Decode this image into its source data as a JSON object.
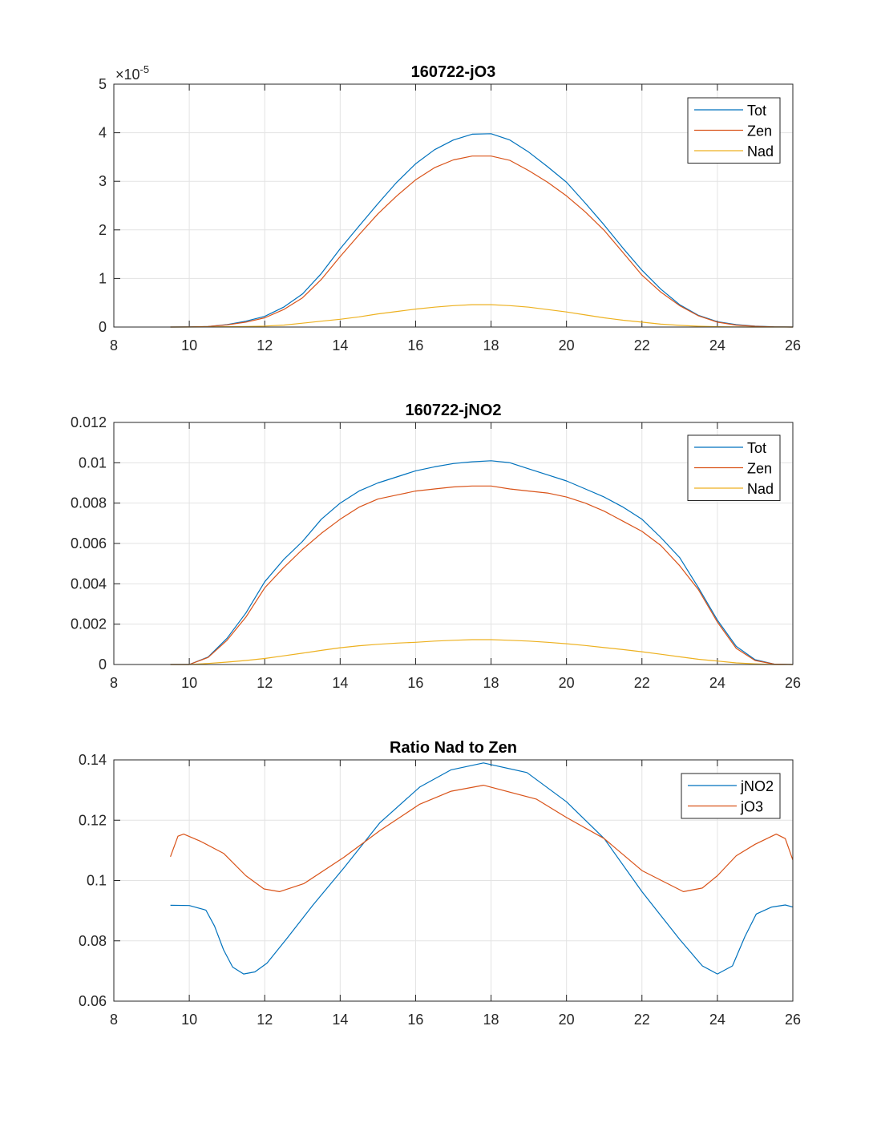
{
  "chart_data": [
    {
      "type": "line",
      "title": "160722-jO3",
      "xlabel": "",
      "ylabel": "",
      "xlim": [
        8,
        26
      ],
      "ylim": [
        0,
        5
      ],
      "xticks": [
        "8",
        "10",
        "12",
        "14",
        "16",
        "18",
        "20",
        "22",
        "24",
        "26"
      ],
      "yticks": [
        "0",
        "1",
        "2",
        "3",
        "4",
        "5"
      ],
      "y_exponent_label": "×10",
      "y_exponent": "-5",
      "grid": true,
      "legend": "top-right",
      "x": [
        9.5,
        10,
        10.5,
        11,
        11.5,
        12,
        12.5,
        13,
        13.5,
        14,
        14.5,
        15,
        15.5,
        16,
        16.5,
        17,
        17.5,
        18,
        18.5,
        19,
        19.5,
        20,
        20.5,
        21,
        21.5,
        22,
        22.5,
        23,
        23.5,
        24,
        24.5,
        25,
        25.5,
        26
      ],
      "series": [
        {
          "name": "Tot",
          "color": "#0072BD",
          "values": [
            0,
            0.001,
            0.01,
            0.05,
            0.12,
            0.22,
            0.41,
            0.68,
            1.1,
            1.61,
            2.08,
            2.54,
            2.98,
            3.36,
            3.65,
            3.85,
            3.97,
            3.98,
            3.85,
            3.6,
            3.3,
            2.98,
            2.55,
            2.1,
            1.62,
            1.17,
            0.78,
            0.46,
            0.24,
            0.11,
            0.05,
            0.02,
            0.005,
            0
          ]
        },
        {
          "name": "Zen",
          "color": "#D95319",
          "values": [
            0,
            0.001,
            0.01,
            0.045,
            0.1,
            0.19,
            0.36,
            0.6,
            0.98,
            1.45,
            1.9,
            2.33,
            2.7,
            3.03,
            3.28,
            3.44,
            3.52,
            3.52,
            3.43,
            3.22,
            2.98,
            2.7,
            2.37,
            1.99,
            1.53,
            1.07,
            0.72,
            0.44,
            0.23,
            0.1,
            0.04,
            0.015,
            0.004,
            0
          ]
        },
        {
          "name": "Nad",
          "color": "#EDB120",
          "values": [
            0,
            0,
            0.003,
            0.007,
            0.012,
            0.02,
            0.04,
            0.08,
            0.12,
            0.16,
            0.21,
            0.27,
            0.32,
            0.37,
            0.41,
            0.44,
            0.46,
            0.46,
            0.44,
            0.41,
            0.36,
            0.31,
            0.25,
            0.19,
            0.14,
            0.1,
            0.06,
            0.035,
            0.017,
            0.007,
            0.002,
            0,
            0,
            0
          ]
        }
      ]
    },
    {
      "type": "line",
      "title": "160722-jNO2",
      "xlabel": "",
      "ylabel": "",
      "xlim": [
        8,
        26
      ],
      "ylim": [
        0,
        0.012
      ],
      "xticks": [
        "8",
        "10",
        "12",
        "14",
        "16",
        "18",
        "20",
        "22",
        "24",
        "26"
      ],
      "yticks": [
        "0",
        "0.002",
        "0.004",
        "0.006",
        "0.008",
        "0.01",
        "0.012"
      ],
      "grid": true,
      "legend": "top-right",
      "x": [
        9.5,
        10,
        10.5,
        11,
        11.5,
        12,
        12.5,
        13,
        13.5,
        14,
        14.5,
        15,
        15.5,
        16,
        16.5,
        17,
        17.5,
        18,
        18.5,
        19,
        19.5,
        20,
        20.5,
        21,
        21.5,
        22,
        22.5,
        23,
        23.5,
        24,
        24.5,
        25,
        25.5,
        26
      ],
      "series": [
        {
          "name": "Tot",
          "color": "#0072BD",
          "values": [
            0,
            0,
            0.00037,
            0.0013,
            0.00255,
            0.0041,
            0.0052,
            0.0061,
            0.0072,
            0.008,
            0.0086,
            0.009,
            0.0093,
            0.0096,
            0.0098,
            0.00996,
            0.01005,
            0.0101,
            0.01,
            0.0097,
            0.0094,
            0.0091,
            0.0087,
            0.0083,
            0.0078,
            0.0072,
            0.0063,
            0.0053,
            0.0038,
            0.0022,
            0.0009,
            0.00024,
            2e-05,
            0
          ]
        },
        {
          "name": "Zen",
          "color": "#D95319",
          "values": [
            0,
            0,
            0.00035,
            0.0012,
            0.00235,
            0.0038,
            0.0048,
            0.0057,
            0.0065,
            0.0072,
            0.0078,
            0.0082,
            0.0084,
            0.0086,
            0.0087,
            0.0088,
            0.00885,
            0.00885,
            0.0087,
            0.0086,
            0.0085,
            0.0083,
            0.008,
            0.0076,
            0.0071,
            0.0066,
            0.0059,
            0.0049,
            0.0037,
            0.0021,
            0.0008,
            0.0002,
            2e-05,
            0
          ]
        },
        {
          "name": "Nad",
          "color": "#EDB120",
          "values": [
            0,
            0,
            5e-05,
            0.00012,
            0.0002,
            0.0003,
            0.00043,
            0.00056,
            0.0007,
            0.00083,
            0.00093,
            0.001,
            0.00106,
            0.0011,
            0.00116,
            0.0012,
            0.00123,
            0.00123,
            0.0012,
            0.00116,
            0.0011,
            0.00103,
            0.00094,
            0.00084,
            0.00074,
            0.00063,
            0.00051,
            0.00038,
            0.00026,
            0.00017,
            8e-05,
            3e-05,
            0,
            0
          ]
        }
      ]
    },
    {
      "type": "line",
      "title": "Ratio Nad to Zen",
      "xlabel": "",
      "ylabel": "",
      "xlim": [
        8,
        26
      ],
      "ylim": [
        0.06,
        0.14
      ],
      "xticks": [
        "8",
        "10",
        "12",
        "14",
        "16",
        "18",
        "20",
        "22",
        "24",
        "26"
      ],
      "yticks": [
        "0.06",
        "0.08",
        "0.1",
        "0.12",
        "0.14"
      ],
      "grid": true,
      "legend": "top-right",
      "series": [
        {
          "name": "jNO2",
          "color": "#0072BD",
          "x": [
            9.5,
            10,
            10.44,
            10.67,
            10.91,
            11.15,
            11.44,
            11.74,
            12.06,
            12.57,
            13.28,
            14.1,
            15.05,
            16.11,
            16.94,
            17.8,
            18.95,
            20,
            21,
            22,
            23,
            23.6,
            24,
            24.4,
            24.73,
            25.03,
            25.44,
            25.8,
            26
          ],
          "values": [
            0.0918,
            0.0917,
            0.0902,
            0.0849,
            0.077,
            0.0713,
            0.069,
            0.0697,
            0.0726,
            0.0805,
            0.0919,
            0.1042,
            0.1191,
            0.131,
            0.1367,
            0.139,
            0.1358,
            0.1261,
            0.1139,
            0.0963,
            0.0805,
            0.0717,
            0.069,
            0.0717,
            0.0814,
            0.0889,
            0.0912,
            0.0919,
            0.0912
          ]
        },
        {
          "name": "jO3",
          "color": "#D95319",
          "x": [
            9.5,
            9.7,
            9.85,
            10.3,
            10.91,
            11.5,
            11.98,
            12.39,
            13.04,
            14.1,
            15.05,
            16.11,
            16.94,
            17.8,
            19.2,
            20,
            21,
            22,
            23.1,
            23.6,
            24,
            24.5,
            25,
            25.56,
            25.8,
            26
          ],
          "values": [
            0.1079,
            0.1147,
            0.1154,
            0.113,
            0.109,
            0.1016,
            0.0972,
            0.0963,
            0.099,
            0.1077,
            0.1165,
            0.1253,
            0.1296,
            0.1316,
            0.127,
            0.1209,
            0.1139,
            0.1033,
            0.0963,
            0.0975,
            0.1016,
            0.1082,
            0.112,
            0.1154,
            0.1139,
            0.1068
          ]
        }
      ]
    }
  ]
}
